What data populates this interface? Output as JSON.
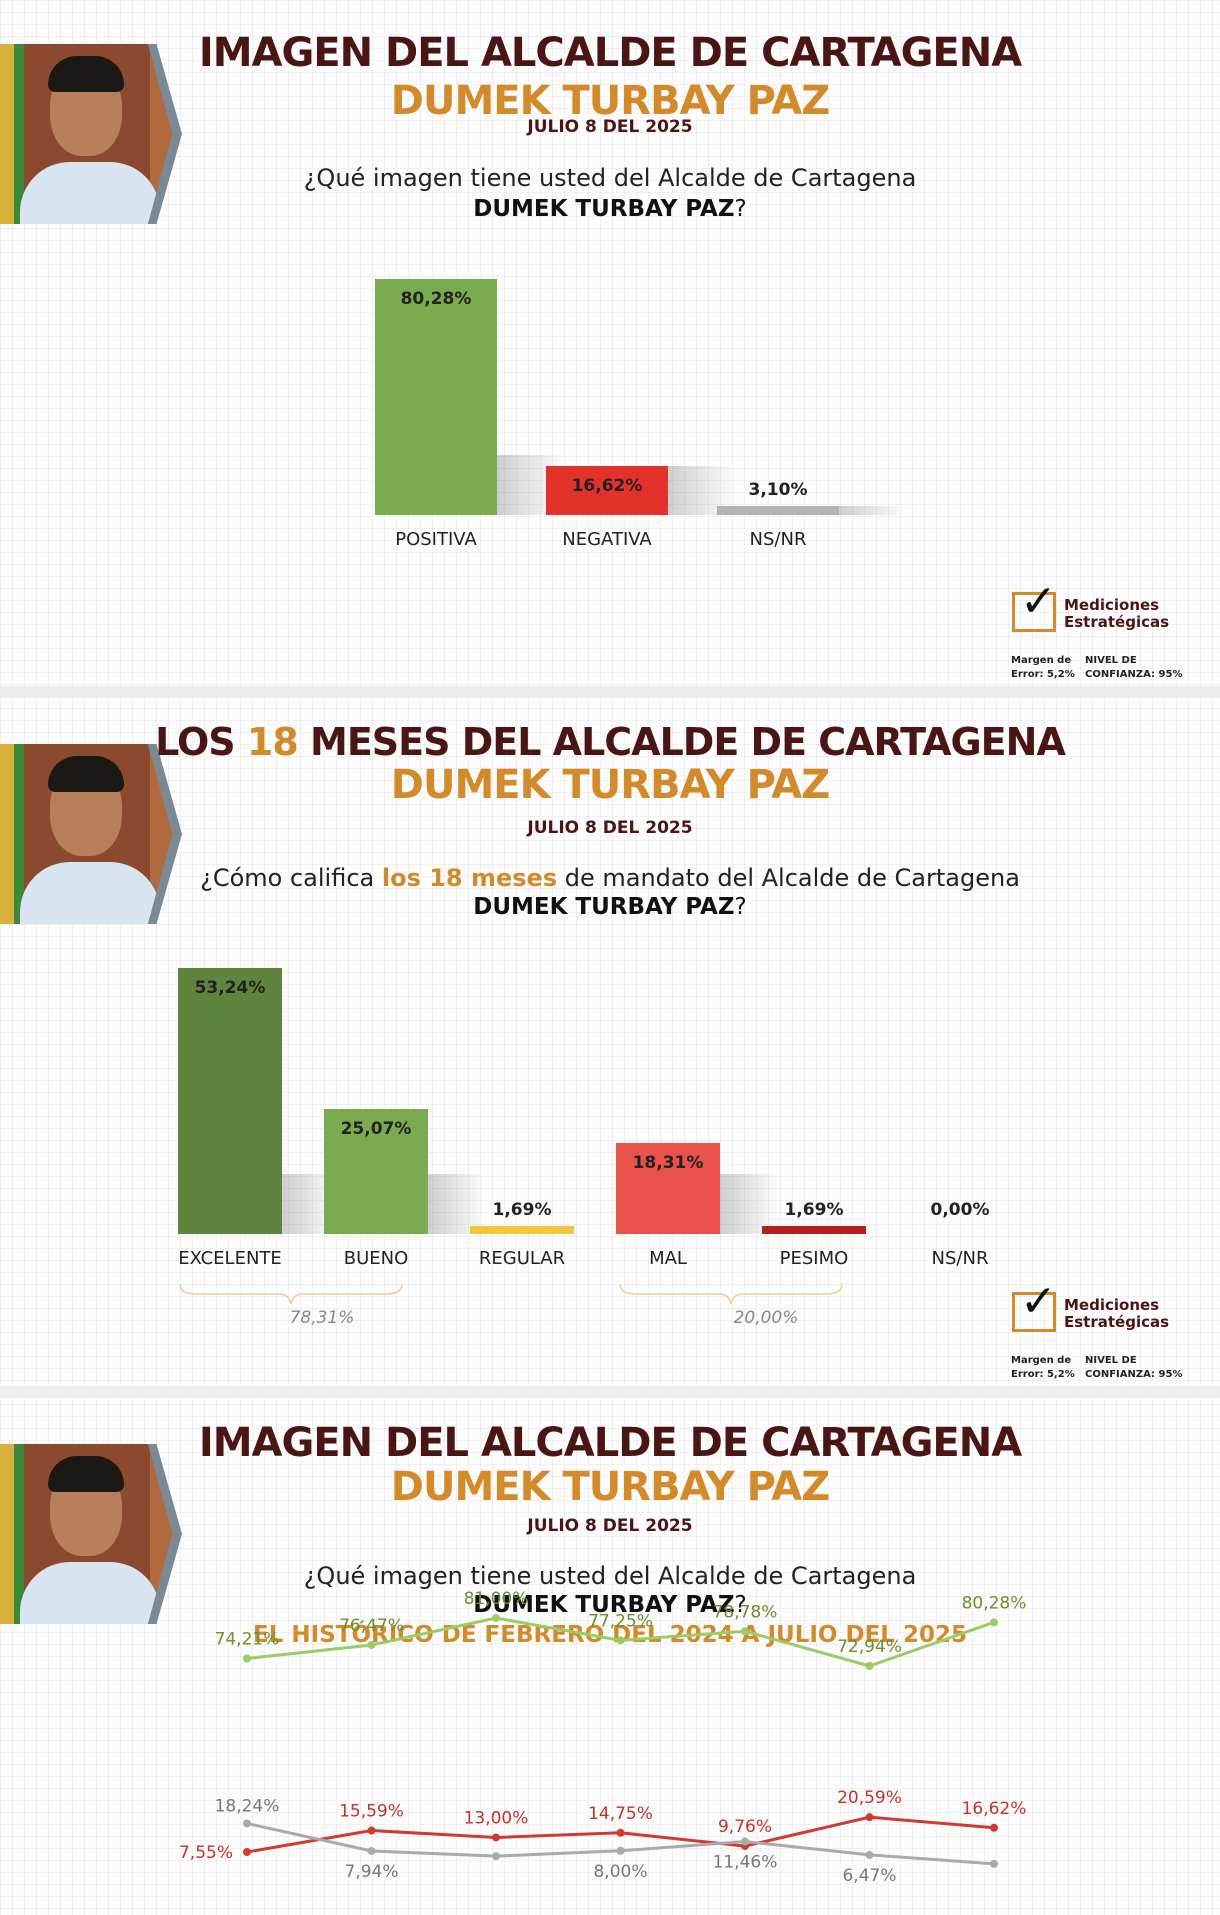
{
  "panel1": {
    "title": "IMAGEN DEL ALCALDE DE CARTAGENA",
    "subtitle": "DUMEK TURBAY PAZ",
    "date": "JULIO 8 DEL 2025",
    "question": "¿Qué imagen tiene usted del Alcalde de Cartagena",
    "question_name": "DUMEK TURBAY PAZ",
    "question_end": "?"
  },
  "panel2": {
    "title_pre": "LOS ",
    "title_num": "18",
    "title_post": " MESES DEL ALCALDE DE CARTAGENA",
    "subtitle": "DUMEK TURBAY PAZ",
    "date": "JULIO 8 DEL 2025",
    "question_pre": "¿Cómo califica ",
    "question_hl": "los 18 meses",
    "question_post": " de mandato del Alcalde de Cartagena",
    "question_name": "DUMEK TURBAY PAZ",
    "question_end": "?",
    "brace_positive": "78,31%",
    "brace_negative": "20,00%"
  },
  "panel3": {
    "title": "IMAGEN DEL ALCALDE DE CARTAGENA",
    "subtitle": "DUMEK TURBAY PAZ",
    "date": "JULIO 8 DEL 2025",
    "question": "¿Qué imagen tiene usted del Alcalde de Cartagena",
    "question_name": "DUMEK TURBAY PAZ",
    "question_end": "?",
    "history_title": "EL HISTÓRICO DE FEBRERO DEL 2024 A JULIO DEL 2025"
  },
  "logo": {
    "line1": "Mediciones",
    "line2": "Estratégicas",
    "margin": "Margen de Error: 5,2%",
    "confidence": "NIVEL DE CONFIANZA: 95%"
  },
  "colors": {
    "dark_title": "#4a1515",
    "gold": "#d38a2b",
    "green": "#7aab4f",
    "dark_green": "#5f843e",
    "red": "#e3322b",
    "dark_red": "#b01e1e",
    "yellow": "#f2c53d",
    "gray": "#b3b3b3"
  },
  "chart_data": [
    {
      "type": "bar",
      "categories": [
        "POSITIVA",
        "NEGATIVA",
        "NS/NR"
      ],
      "values": [
        80.28,
        16.62,
        3.1
      ],
      "labels": [
        "80,28%",
        "16,62%",
        "3,10%"
      ],
      "colors": [
        "#7aab4f",
        "#e3322b",
        "#b3b3b3"
      ],
      "ylim": [
        0,
        100
      ]
    },
    {
      "type": "bar",
      "categories": [
        "EXCELENTE",
        "BUENO",
        "REGULAR",
        "MAL",
        "PESIMO",
        "NS/NR"
      ],
      "values": [
        53.24,
        25.07,
        1.69,
        18.31,
        1.69,
        0.0
      ],
      "labels": [
        "53,24%",
        "25,07%",
        "1,69%",
        "18,31%",
        "1,69%",
        "0,00%"
      ],
      "colors": [
        "#5f843e",
        "#7aab4f",
        "#f2c53d",
        "#e9524a",
        "#b01e1e",
        "#b3b3b3"
      ],
      "ylim": [
        0,
        60
      ]
    },
    {
      "type": "line",
      "series": [
        {
          "values": [
            74.21,
            76.47,
            81.0,
            77.25,
            78.78,
            72.94,
            80.28
          ],
          "labels": [
            "74,21%",
            "76,47%",
            "81,00%",
            "77,25%",
            "78,78%",
            "72,94%",
            "80,28%"
          ],
          "color": "#9ccc65"
        },
        {
          "values": [
            7.55,
            15.59,
            13.0,
            14.75,
            9.76,
            20.59,
            16.62
          ],
          "labels": [
            "7,55%",
            "15,59%",
            "13,00%",
            "14,75%",
            "9,76%",
            "20,59%",
            "16,62%"
          ],
          "color": "#d13a2f"
        },
        {
          "values": [
            18.24,
            7.94,
            6.0,
            8.0,
            11.46,
            6.47,
            3.1
          ],
          "labels": [
            "18,24%",
            "7,94%",
            "",
            "8,00%",
            "11,46%",
            "6,47%",
            ""
          ],
          "color": "#aaaaaa"
        }
      ]
    }
  ]
}
